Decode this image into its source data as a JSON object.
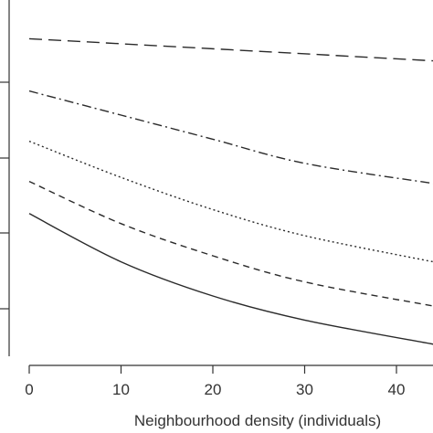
{
  "chart_data": {
    "type": "line",
    "title": "",
    "xlabel": "Neighbourhood density (individuals)",
    "ylabel": "",
    "xlim": [
      -2.5,
      44
    ],
    "ylim": [
      0,
      1
    ],
    "x_ticks": [
      0,
      10,
      20,
      30,
      40
    ],
    "x_tick_labels": [
      "0",
      "10",
      "20",
      "30",
      "40"
    ],
    "y_tick_count": 4,
    "grid": false,
    "legend": "none",
    "series": [
      {
        "style": "long-dash",
        "x": [
          0,
          44
        ],
        "y": [
          0.79,
          0.735
        ]
      },
      {
        "style": "dash-dot",
        "x": [
          0,
          10,
          20,
          30,
          44
        ],
        "y": [
          0.66,
          0.6,
          0.54,
          0.48,
          0.43
        ]
      },
      {
        "style": "dotted",
        "x": [
          0,
          10,
          20,
          30,
          44
        ],
        "y": [
          0.535,
          0.445,
          0.365,
          0.3,
          0.235
        ]
      },
      {
        "style": "short-dash",
        "x": [
          0,
          10,
          20,
          30,
          44
        ],
        "y": [
          0.435,
          0.33,
          0.25,
          0.185,
          0.125
        ]
      },
      {
        "style": "solid",
        "x": [
          0,
          10,
          20,
          30,
          44
        ],
        "y": [
          0.355,
          0.235,
          0.15,
          0.09,
          0.03
        ]
      }
    ]
  }
}
